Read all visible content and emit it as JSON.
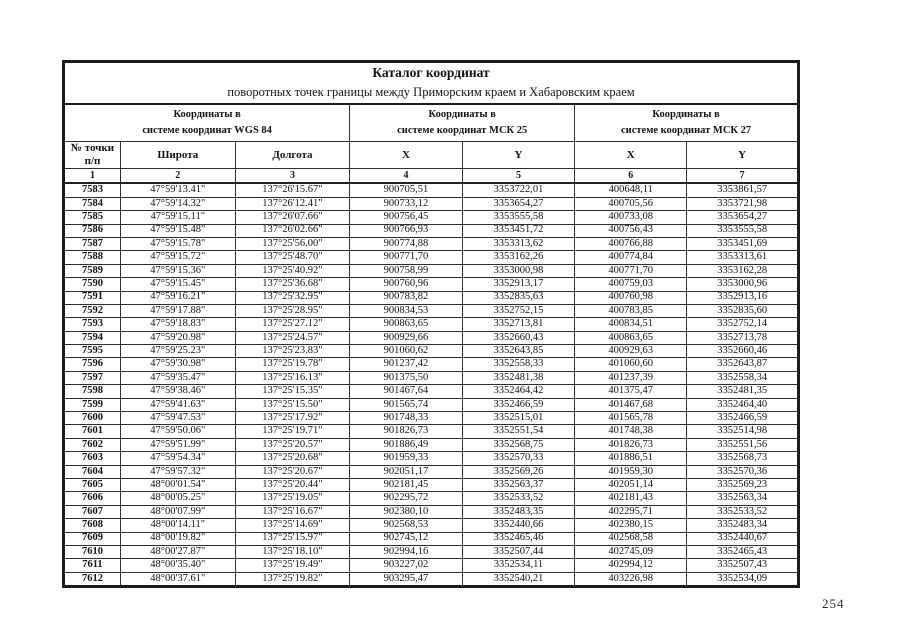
{
  "page": {
    "page_number": "254"
  },
  "table": {
    "title": "Каталог координат",
    "subtitle": "поворотных точек границы между  Приморским краем и Хабаровским краем",
    "groups": [
      {
        "line1": "Координаты в",
        "line2": "системе координат WGS 84"
      },
      {
        "line1": "Координаты в",
        "line2": "системе координат МСК 25"
      },
      {
        "line1": "Координаты в",
        "line2": "системе координат МСК 27"
      }
    ],
    "header": {
      "point_line1": "№ точки",
      "point_line2": "п/п",
      "lat": "Широта",
      "lon": "Долгота",
      "x": "X",
      "y": "Y"
    },
    "col_numbers": [
      "1",
      "2",
      "3",
      "4",
      "5",
      "6",
      "7"
    ],
    "rows": [
      [
        "7583",
        "47°59'13.41\"",
        "137°26'15.67\"",
        "900705,51",
        "3353722,01",
        "400648,11",
        "3353861,57"
      ],
      [
        "7584",
        "47°59'14.32\"",
        "137°26'12.41\"",
        "900733,12",
        "3353654,27",
        "400705,56",
        "3353721,98"
      ],
      [
        "7585",
        "47°59'15.11\"",
        "137°26'07.66\"",
        "900756,45",
        "3353555,58",
        "400733,08",
        "3353654,27"
      ],
      [
        "7586",
        "47°59'15.48\"",
        "137°26'02.66\"",
        "900766,93",
        "3353451,72",
        "400756,43",
        "3353555,58"
      ],
      [
        "7587",
        "47°59'15.78\"",
        "137°25'56.00\"",
        "900774,88",
        "3353313,62",
        "400766,88",
        "3353451,69"
      ],
      [
        "7588",
        "47°59'15.72\"",
        "137°25'48.70\"",
        "900771,70",
        "3353162,26",
        "400774,84",
        "3353313,61"
      ],
      [
        "7589",
        "47°59'15.36\"",
        "137°25'40.92\"",
        "900758,99",
        "3353000,98",
        "400771,70",
        "3353162,28"
      ],
      [
        "7590",
        "47°59'15.45\"",
        "137°25'36.68\"",
        "900760,96",
        "3352913,17",
        "400759,03",
        "3353000,96"
      ],
      [
        "7591",
        "47°59'16.21\"",
        "137°25'32.95\"",
        "900783,82",
        "3352835,63",
        "400760,98",
        "3352913,16"
      ],
      [
        "7592",
        "47°59'17.88\"",
        "137°25'28.95\"",
        "900834,53",
        "3352752,15",
        "400783,85",
        "3352835,60"
      ],
      [
        "7593",
        "47°59'18.83\"",
        "137°25'27.12\"",
        "900863,65",
        "3352713,81",
        "400834,51",
        "3352752,14"
      ],
      [
        "7594",
        "47°59'20.98\"",
        "137°25'24.57\"",
        "900929,66",
        "3352660,43",
        "400863,65",
        "3352713,78"
      ],
      [
        "7595",
        "47°59'25.23\"",
        "137°25'23.83\"",
        "901060,62",
        "3352643,85",
        "400929,63",
        "3352660,46"
      ],
      [
        "7596",
        "47°59'30.98\"",
        "137°25'19.78\"",
        "901237,42",
        "3352558,33",
        "401060,60",
        "3352643,87"
      ],
      [
        "7597",
        "47°59'35.47\"",
        "137°25'16.13\"",
        "901375,50",
        "3352481,38",
        "401237,39",
        "3352558,34"
      ],
      [
        "7598",
        "47°59'38.46\"",
        "137°25'15.35\"",
        "901467,64",
        "3352464,42",
        "401375,47",
        "3352481,35"
      ],
      [
        "7599",
        "47°59'41.63\"",
        "137°25'15.50\"",
        "901565,74",
        "3352466,59",
        "401467,68",
        "3352464,40"
      ],
      [
        "7600",
        "47°59'47.53\"",
        "137°25'17.92\"",
        "901748,33",
        "3352515,01",
        "401565,78",
        "3352466,59"
      ],
      [
        "7601",
        "47°59'50.06\"",
        "137°25'19.71\"",
        "901826,73",
        "3352551,54",
        "401748,38",
        "3352514,98"
      ],
      [
        "7602",
        "47°59'51.99\"",
        "137°25'20.57\"",
        "901886,49",
        "3352568,75",
        "401826,73",
        "3352551,56"
      ],
      [
        "7603",
        "47°59'54.34\"",
        "137°25'20.68\"",
        "901959,33",
        "3352570,33",
        "401886,51",
        "3352568,73"
      ],
      [
        "7604",
        "47°59'57.32\"",
        "137°25'20.67\"",
        "902051,17",
        "3352569,26",
        "401959,30",
        "3352570,36"
      ],
      [
        "7605",
        "48°00'01.54\"",
        "137°25'20.44\"",
        "902181,45",
        "3352563,37",
        "402051,14",
        "3352569,23"
      ],
      [
        "7606",
        "48°00'05.25\"",
        "137°25'19.05\"",
        "902295,72",
        "3352533,52",
        "402181,43",
        "3352563,34"
      ],
      [
        "7607",
        "48°00'07.99\"",
        "137°25'16.67\"",
        "902380,10",
        "3352483,35",
        "402295,71",
        "3352533,52"
      ],
      [
        "7608",
        "48°00'14.11\"",
        "137°25'14.69\"",
        "902568,53",
        "3352440,66",
        "402380,15",
        "3352483,34"
      ],
      [
        "7609",
        "48°00'19.82\"",
        "137°25'15.97\"",
        "902745,12",
        "3352465,46",
        "402568,58",
        "3352440,67"
      ],
      [
        "7610",
        "48°00'27.87\"",
        "137°25'18.10\"",
        "902994,16",
        "3352507,44",
        "402745,09",
        "3352465,43"
      ],
      [
        "7611",
        "48°00'35.40\"",
        "137°25'19.49\"",
        "903227,02",
        "3352534,11",
        "402994,12",
        "3352507,43"
      ],
      [
        "7612",
        "48°00'37.61\"",
        "137°25'19.82\"",
        "903295,47",
        "3352540,21",
        "403226,98",
        "3352534,09"
      ]
    ]
  }
}
